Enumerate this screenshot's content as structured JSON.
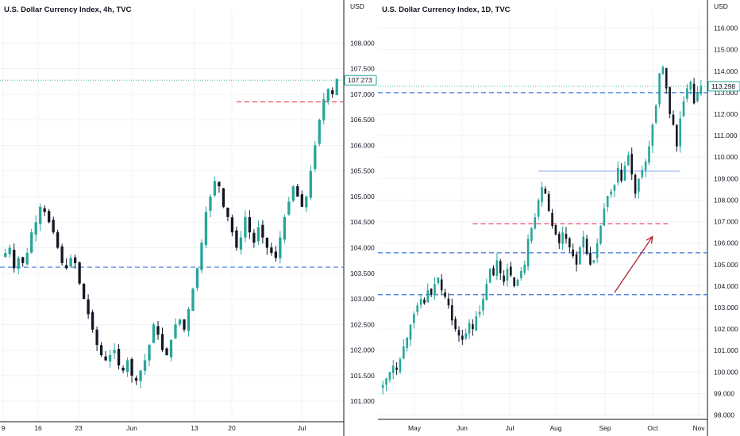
{
  "chart_data": [
    {
      "type": "candlestick",
      "title": "U.S. Dollar Currency Index, 4h, TVC",
      "y_unit": "USD",
      "x_tick_labels": [
        "9",
        "16",
        "23",
        "Jun",
        "13",
        "20",
        "Jul"
      ],
      "y_tick_labels": [
        "101.000",
        "101.500",
        "102.000",
        "102.500",
        "103.000",
        "103.500",
        "104.000",
        "104.500",
        "105.000",
        "105.500",
        "106.000",
        "106.500",
        "107.000",
        "107.500",
        "108.000"
      ],
      "ylim": [
        100.6,
        108.5
      ],
      "last_price": "107.273",
      "last_price_value": 107.273,
      "closes": [
        103.9,
        104.0,
        103.6,
        103.8,
        103.7,
        103.9,
        104.3,
        104.5,
        104.8,
        104.7,
        104.5,
        104.3,
        104.0,
        103.7,
        103.6,
        103.8,
        103.7,
        103.3,
        103.0,
        102.7,
        102.4,
        102.1,
        101.9,
        101.8,
        101.9,
        102.0,
        101.7,
        101.6,
        101.8,
        101.5,
        101.4,
        101.6,
        101.8,
        102.1,
        102.5,
        102.3,
        102.0,
        101.9,
        102.2,
        102.5,
        102.6,
        102.4,
        102.8,
        103.2,
        103.6,
        104.1,
        104.7,
        105.0,
        105.3,
        105.2,
        104.8,
        104.6,
        104.3,
        104.0,
        104.2,
        104.6,
        104.3,
        104.1,
        104.4,
        104.2,
        104.0,
        103.9,
        103.8,
        104.2,
        104.6,
        104.9,
        105.2,
        105.0,
        104.8,
        105.0,
        105.5,
        106.0,
        106.5,
        106.9,
        107.1,
        107.0,
        107.3
      ],
      "lines": [
        {
          "kind": "horizontal",
          "style": "dashed",
          "color": "#3f74d8",
          "value": 103.62
        },
        {
          "kind": "horizontal",
          "style": "dashed",
          "color": "#e84a5f",
          "value": 106.85,
          "from_index": 53
        }
      ]
    },
    {
      "type": "candlestick",
      "title": "U.S. Dollar Currency Index, 1D, TVC",
      "y_unit": "USD",
      "x_tick_labels": [
        "May",
        "Jun",
        "Jul",
        "Aug",
        "Sep",
        "Oct",
        "Nov"
      ],
      "y_tick_labels": [
        "98.000",
        "99.000",
        "100.000",
        "101.000",
        "102.000",
        "103.000",
        "104.000",
        "105.000",
        "106.000",
        "107.000",
        "108.000",
        "109.000",
        "110.000",
        "111.000",
        "112.000",
        "113.000",
        "114.000",
        "115.000",
        "116.000"
      ],
      "ylim": [
        97.8,
        116.5
      ],
      "last_price": "113.298",
      "last_price_value": 113.298,
      "closes": [
        99.4,
        99.7,
        100.0,
        100.3,
        100.1,
        100.6,
        101.2,
        101.6,
        102.2,
        102.7,
        103.1,
        103.4,
        103.2,
        103.8,
        103.6,
        104.1,
        104.4,
        103.8,
        103.5,
        103.1,
        102.4,
        102.0,
        101.7,
        101.5,
        101.8,
        102.3,
        102.0,
        102.6,
        102.8,
        103.4,
        104.1,
        104.8,
        104.5,
        105.2,
        104.6,
        104.2,
        104.8,
        104.5,
        104.0,
        104.3,
        104.7,
        105.0,
        106.2,
        106.7,
        107.2,
        108.0,
        108.6,
        108.3,
        107.5,
        106.8,
        106.4,
        106.0,
        106.5,
        106.2,
        105.8,
        105.4,
        105.0,
        105.8,
        106.3,
        105.5,
        105.0,
        105.2,
        106.0,
        106.8,
        107.6,
        108.2,
        108.4,
        108.7,
        109.5,
        108.9,
        109.6,
        110.1,
        109.2,
        108.3,
        109.0,
        109.4,
        109.8,
        110.5,
        111.5,
        112.4,
        113.9,
        114.2,
        113.2,
        112.0,
        111.5,
        110.5,
        111.8,
        112.6,
        113.2,
        113.5,
        112.5,
        113.0,
        113.3
      ],
      "lines": [
        {
          "kind": "horizontal",
          "style": "dashed",
          "color": "#3f74d8",
          "value": 113.0
        },
        {
          "kind": "horizontal",
          "style": "dashed",
          "color": "#3f74d8",
          "value": 105.55
        },
        {
          "kind": "horizontal",
          "style": "dashed",
          "color": "#3f74d8",
          "value": 103.6
        },
        {
          "kind": "horizontal",
          "style": "dashed",
          "color": "#e84a5f",
          "value": 106.9,
          "from_index": 26,
          "to_index": 83
        },
        {
          "kind": "horizontal",
          "style": "solid",
          "color": "#a9c3ef",
          "value": 109.35,
          "from_index": 45,
          "to_index": 86
        }
      ],
      "arrow": {
        "color": "#b22234",
        "from": {
          "index": 67,
          "value": 103.7
        },
        "to": {
          "index": 78,
          "value": 106.3
        }
      }
    }
  ],
  "colors": {
    "up": "#26a69a",
    "down": "#131722",
    "bg": "#ffffff",
    "grid": "#f0f3fa"
  }
}
